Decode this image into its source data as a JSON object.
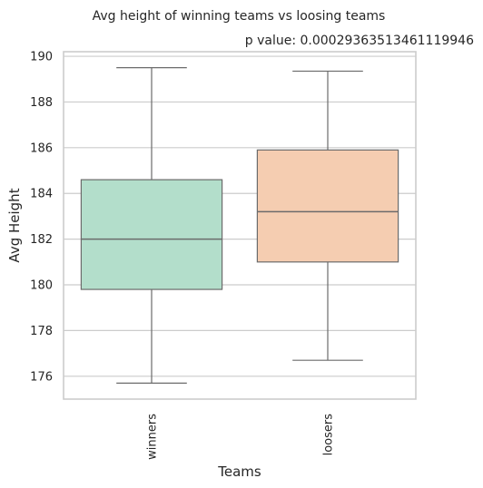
{
  "chart_data": {
    "type": "box",
    "title": "Avg height of winning teams vs loosing teams",
    "subtitle": "p value: 0.00029363513461119946",
    "xlabel": "Teams",
    "ylabel": "Avg Height",
    "categories": [
      "winners",
      "loosers"
    ],
    "boxes": [
      {
        "category": "winners",
        "whisker_low": 175.7,
        "q1": 179.8,
        "median": 182.0,
        "q3": 184.6,
        "whisker_high": 189.5,
        "color": "#b3decb"
      },
      {
        "category": "loosers",
        "whisker_low": 176.7,
        "q1": 181.0,
        "median": 183.2,
        "q3": 185.9,
        "whisker_high": 189.35,
        "color": "#f5cdb1"
      }
    ],
    "ylim": [
      175.0,
      190.2
    ],
    "yticks": [
      176,
      178,
      180,
      182,
      184,
      186,
      188,
      190
    ],
    "grid": "horizontal",
    "line_color": "#6b6b6b",
    "grid_color": "#cccccc",
    "frame_color": "#cccccc"
  }
}
